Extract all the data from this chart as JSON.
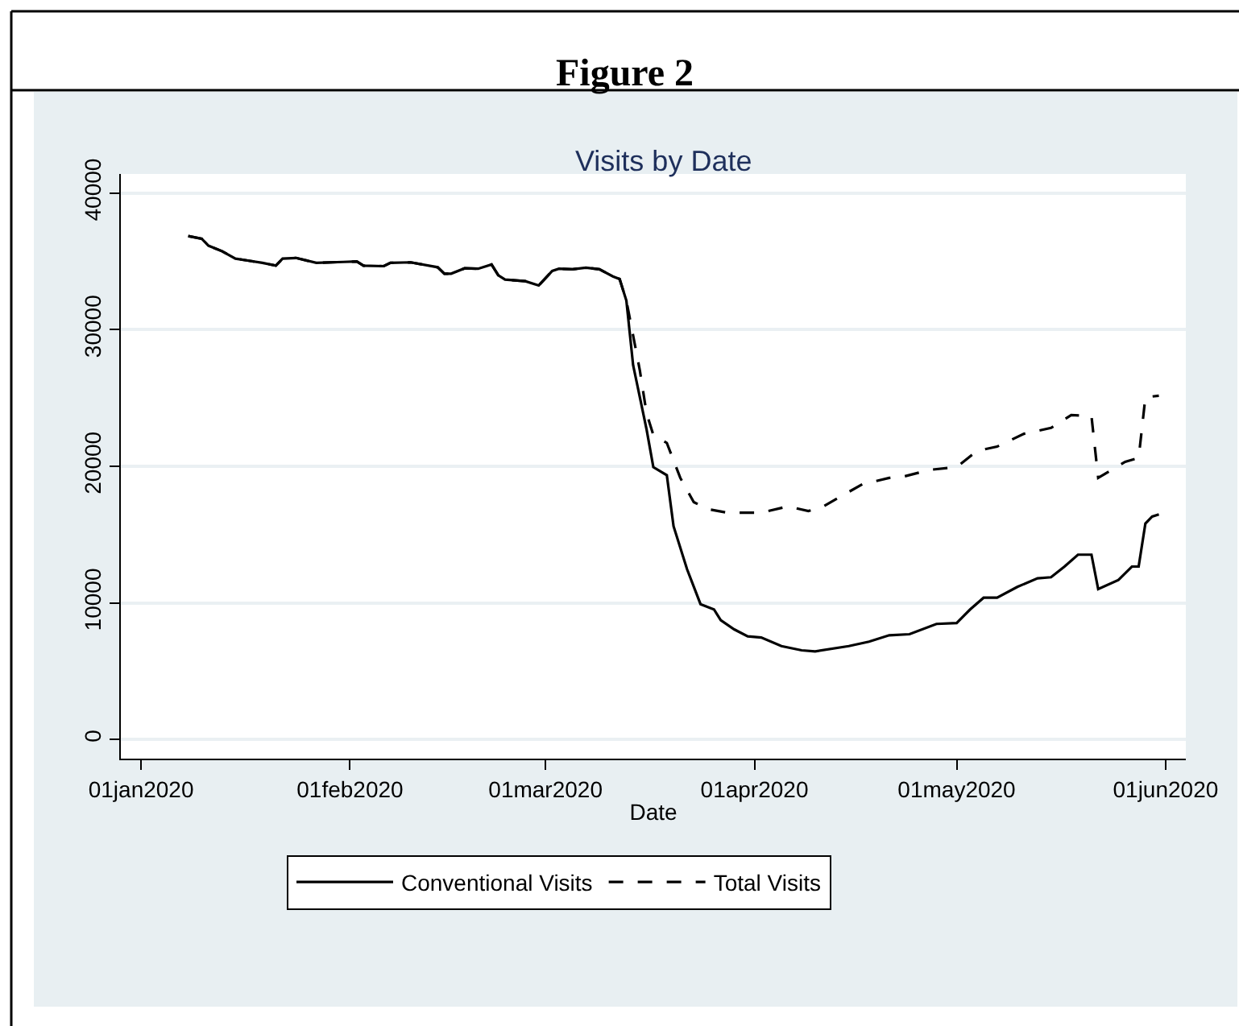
{
  "chart_data": {
    "type": "line",
    "title": "Figure 2",
    "subtitle": "Visits by Date",
    "xlabel": "Date",
    "xlim": [
      "2019-12-29",
      "2020-06-04"
    ],
    "xticks": [
      {
        "value": "2020-01-01",
        "label": "01jan2020"
      },
      {
        "value": "2020-02-01",
        "label": "01feb2020"
      },
      {
        "value": "2020-03-01",
        "label": "01mar2020"
      },
      {
        "value": "2020-04-01",
        "label": "01apr2020"
      },
      {
        "value": "2020-05-01",
        "label": "01may2020"
      },
      {
        "value": "2020-06-01",
        "label": "01jun2020"
      }
    ],
    "ylim": [
      -1400,
      41400
    ],
    "yticks": [
      0,
      10000,
      20000,
      30000,
      40000
    ],
    "grid": "y",
    "legend": "bottom",
    "marker": "none",
    "series": [
      {
        "name": "Conventional Visits",
        "color": "#000000",
        "line_style": "solid",
        "x": [
          "2020-01-08",
          "2020-01-10",
          "2020-01-11",
          "2020-01-13",
          "2020-01-15",
          "2020-01-17",
          "2020-01-19",
          "2020-01-21",
          "2020-01-22",
          "2020-01-24",
          "2020-01-27",
          "2020-01-31",
          "2020-02-02",
          "2020-02-03",
          "2020-02-06",
          "2020-02-07",
          "2020-02-10",
          "2020-02-14",
          "2020-02-15",
          "2020-02-16",
          "2020-02-18",
          "2020-02-20",
          "2020-02-22",
          "2020-02-23",
          "2020-02-24",
          "2020-02-27",
          "2020-02-29",
          "2020-03-02",
          "2020-03-03",
          "2020-03-05",
          "2020-03-07",
          "2020-03-09",
          "2020-03-11",
          "2020-03-12",
          "2020-03-13",
          "2020-03-14",
          "2020-03-16",
          "2020-03-17",
          "2020-03-19",
          "2020-03-20",
          "2020-03-22",
          "2020-03-24",
          "2020-03-26",
          "2020-03-27",
          "2020-03-29",
          "2020-03-31",
          "2020-04-02",
          "2020-04-05",
          "2020-04-08",
          "2020-04-10",
          "2020-04-15",
          "2020-04-18",
          "2020-04-21",
          "2020-04-24",
          "2020-04-28",
          "2020-05-01",
          "2020-05-03",
          "2020-05-05",
          "2020-05-07",
          "2020-05-10",
          "2020-05-13",
          "2020-05-15",
          "2020-05-17",
          "2020-05-19",
          "2020-05-21",
          "2020-05-22",
          "2020-05-25",
          "2020-05-27",
          "2020-05-28",
          "2020-05-29",
          "2020-05-30",
          "2020-05-31"
        ],
        "values": [
          36850,
          36660,
          36150,
          35750,
          35200,
          35050,
          34890,
          34690,
          35200,
          35250,
          34890,
          34960,
          35000,
          34690,
          34650,
          34890,
          34930,
          34570,
          34100,
          34100,
          34490,
          34460,
          34770,
          33980,
          33670,
          33550,
          33240,
          34300,
          34460,
          34420,
          34540,
          34420,
          33900,
          33710,
          32130,
          27410,
          22690,
          19940,
          19350,
          15610,
          12470,
          9910,
          9520,
          8730,
          8060,
          7550,
          7470,
          6840,
          6530,
          6450,
          6840,
          7160,
          7630,
          7710,
          8460,
          8530,
          9520,
          10380,
          10380,
          11170,
          11800,
          11880,
          12660,
          13530,
          13530,
          11010,
          11680,
          12660,
          12660,
          15810,
          16320,
          16480
        ]
      },
      {
        "name": "Total Visits",
        "color": "#000000",
        "line_style": "dashed",
        "x": [
          "2020-01-08",
          "2020-01-10",
          "2020-01-11",
          "2020-01-13",
          "2020-01-15",
          "2020-01-17",
          "2020-01-19",
          "2020-01-21",
          "2020-01-22",
          "2020-01-24",
          "2020-01-27",
          "2020-01-31",
          "2020-02-02",
          "2020-02-03",
          "2020-02-06",
          "2020-02-07",
          "2020-02-10",
          "2020-02-14",
          "2020-02-15",
          "2020-02-16",
          "2020-02-18",
          "2020-02-20",
          "2020-02-22",
          "2020-02-23",
          "2020-02-24",
          "2020-02-27",
          "2020-02-29",
          "2020-03-02",
          "2020-03-03",
          "2020-03-05",
          "2020-03-07",
          "2020-03-09",
          "2020-03-11",
          "2020-03-12",
          "2020-03-13",
          "2020-03-15",
          "2020-03-16",
          "2020-03-17",
          "2020-03-19",
          "2020-03-21",
          "2020-03-23",
          "2020-03-25",
          "2020-03-28",
          "2020-04-02",
          "2020-04-06",
          "2020-04-09",
          "2020-04-11",
          "2020-04-14",
          "2020-04-17",
          "2020-04-21",
          "2020-04-23",
          "2020-04-27",
          "2020-05-01",
          "2020-05-04",
          "2020-05-07",
          "2020-05-11",
          "2020-05-15",
          "2020-05-18",
          "2020-05-21",
          "2020-05-22",
          "2020-05-26",
          "2020-05-28",
          "2020-05-29",
          "2020-05-31"
        ],
        "values": [
          36850,
          36660,
          36150,
          35750,
          35200,
          35050,
          34890,
          34690,
          35200,
          35250,
          34890,
          34960,
          35000,
          34690,
          34650,
          34890,
          34930,
          34570,
          34100,
          34100,
          34490,
          34460,
          34770,
          33980,
          33670,
          33550,
          33240,
          34300,
          34460,
          34420,
          34540,
          34420,
          33900,
          33710,
          32130,
          27020,
          23870,
          22300,
          21710,
          19150,
          17380,
          16870,
          16600,
          16600,
          17070,
          16720,
          17000,
          17850,
          18680,
          19150,
          19230,
          19740,
          19940,
          21120,
          21440,
          22380,
          22810,
          23750,
          23680,
          19150,
          20330,
          20610,
          25050,
          25170
        ]
      }
    ]
  }
}
